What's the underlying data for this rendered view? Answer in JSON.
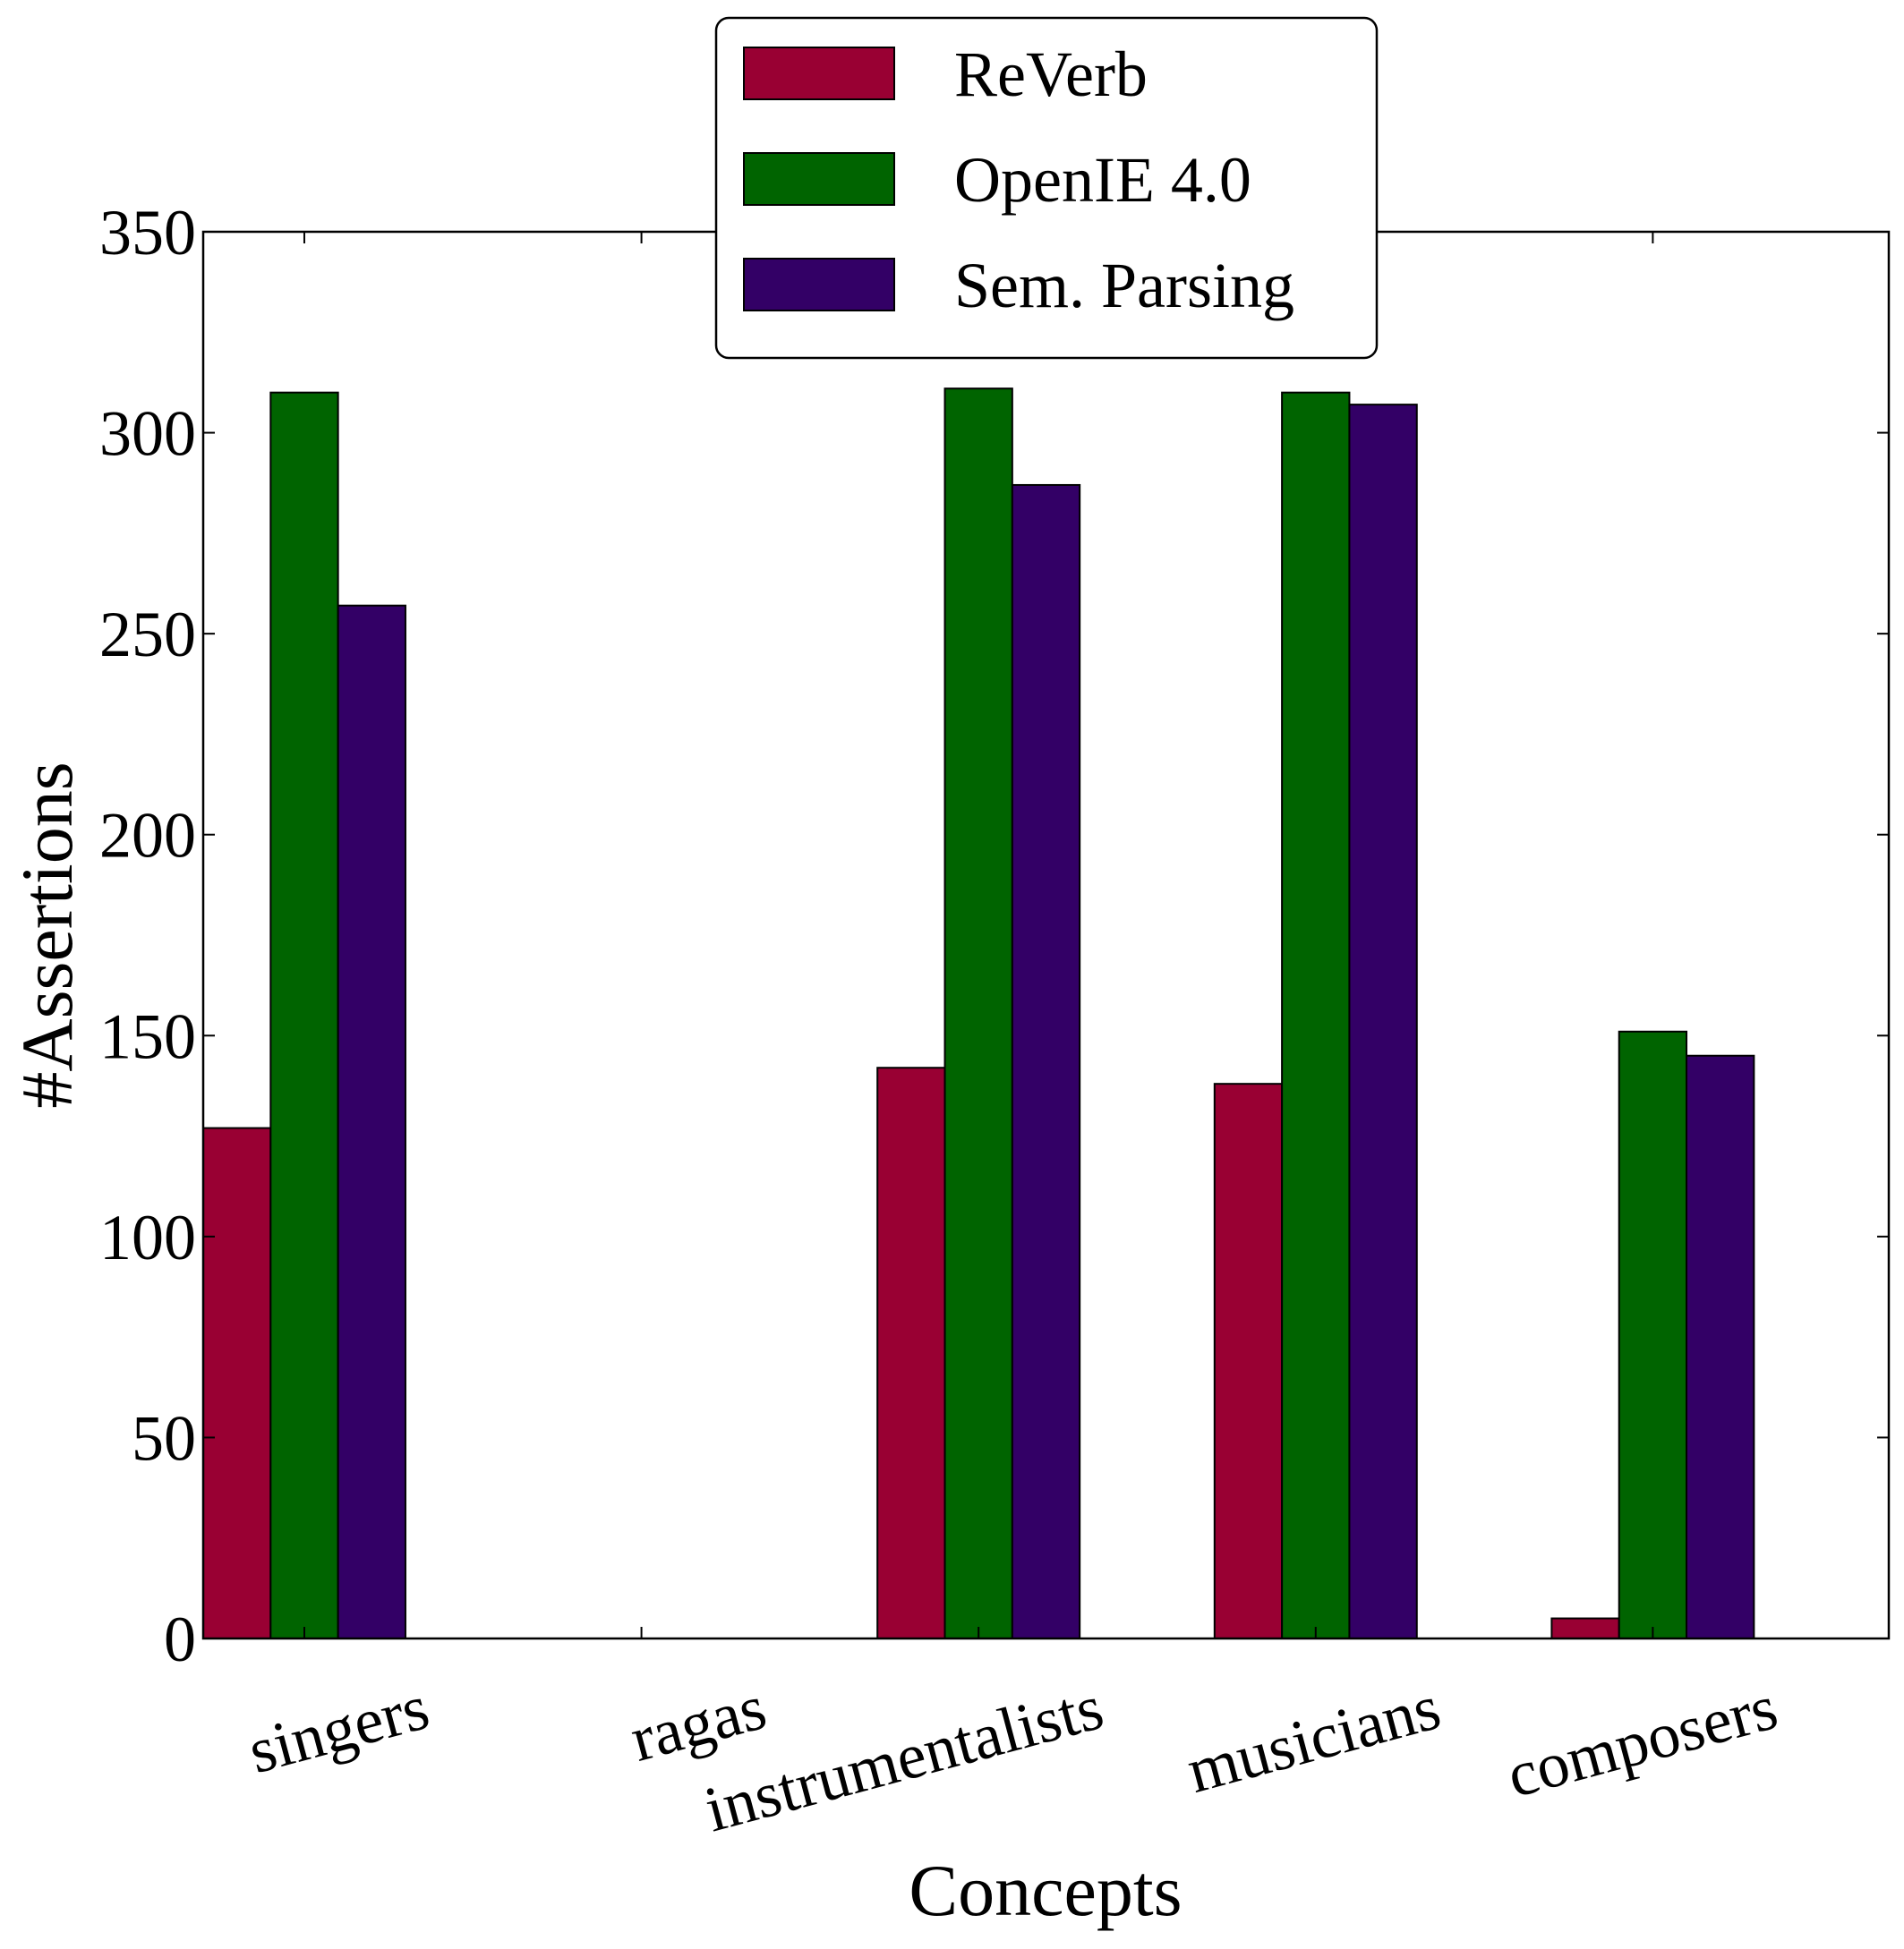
{
  "chart_data": {
    "type": "bar",
    "title": "",
    "xlabel": "Concepts",
    "ylabel": "#Assertions",
    "categories": [
      "singers",
      "ragas",
      "instrumentalists",
      "musicians",
      "composers"
    ],
    "series": [
      {
        "name": "ReVerb",
        "color": "#990033",
        "values": [
          127,
          0,
          142,
          138,
          5
        ]
      },
      {
        "name": "OpenIE 4.0",
        "color": "#006400",
        "values": [
          310,
          0,
          311,
          310,
          151
        ]
      },
      {
        "name": "Sem. Parsing",
        "color": "#330066",
        "values": [
          257,
          0,
          287,
          307,
          145
        ]
      }
    ],
    "ylim": [
      0,
      350
    ],
    "yticks": [
      "0",
      "50",
      "100",
      "150",
      "200",
      "250",
      "300",
      "350"
    ],
    "grid": false,
    "legend_position": "top-center"
  }
}
